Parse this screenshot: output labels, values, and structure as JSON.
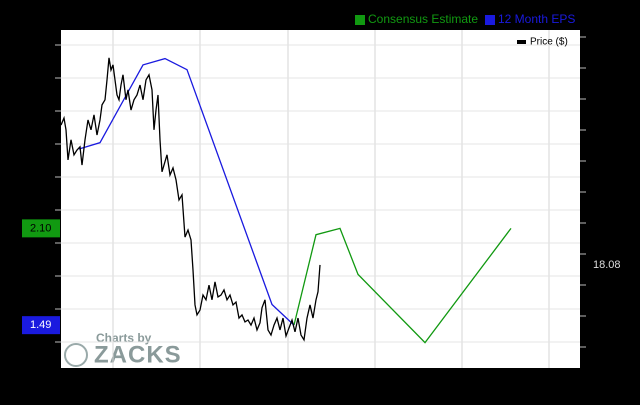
{
  "chart_data": {
    "type": "line",
    "xlim": [
      0,
      519
    ],
    "ylim": [
      1.22,
      3.35
    ],
    "y2lim": [
      14.86,
      25.42
    ],
    "watermark": [
      "Charts by",
      "ZACKS"
    ],
    "series": [
      {
        "name": "Consensus Estimate",
        "color": "#119911",
        "x": [
          233,
          255,
          279,
          297,
          364,
          450
        ],
        "values": [
          1.49,
          2.06,
          2.1,
          1.81,
          1.38,
          2.1
        ],
        "tag": {
          "value": 2.1,
          "label": "2.10"
        }
      },
      {
        "name": "12 Month EPS",
        "color": "#1a1adf",
        "x": [
          18,
          39,
          82,
          104,
          126,
          211,
          233
        ],
        "values": [
          2.6,
          2.64,
          3.13,
          3.17,
          3.1,
          1.62,
          1.49
        ],
        "tag": {
          "value": 1.49,
          "label": "1.49"
        }
      },
      {
        "name": "Price ($)",
        "color": "#000000",
        "axis": "y2",
        "x": [
          0,
          3,
          5,
          7,
          10,
          13,
          16,
          19,
          21,
          24,
          27,
          30,
          33,
          36,
          39,
          41,
          44,
          46,
          48,
          50,
          52,
          54,
          56,
          58,
          60,
          62,
          65,
          67,
          70,
          73,
          76,
          79,
          82,
          85,
          88,
          91,
          93,
          95,
          97,
          99,
          101,
          103,
          106,
          109,
          112,
          115,
          118,
          121,
          124,
          127,
          130,
          132,
          134,
          136,
          139,
          142,
          145,
          148,
          151,
          154,
          157,
          160,
          163,
          166,
          169,
          172,
          175,
          178,
          181,
          184,
          187,
          190,
          193,
          196,
          199,
          201,
          204,
          207,
          210,
          213,
          216,
          219,
          222,
          225,
          228,
          231,
          234,
          237,
          240,
          243,
          246,
          249,
          252,
          255,
          257,
          259
        ],
        "values": [
          22.45,
          22.67,
          22.3,
          21.36,
          21.99,
          21.52,
          21.67,
          21.77,
          21.2,
          21.99,
          22.61,
          22.3,
          22.77,
          22.14,
          22.61,
          23.08,
          23.24,
          23.86,
          24.55,
          24.17,
          24.33,
          23.86,
          23.39,
          23.24,
          23.7,
          24.02,
          23.24,
          23.55,
          22.92,
          23.24,
          23.39,
          23.7,
          23.24,
          23.86,
          24.02,
          23.55,
          22.3,
          22.92,
          23.39,
          21.99,
          20.99,
          21.2,
          21.52,
          20.89,
          21.11,
          20.74,
          20.11,
          20.27,
          18.95,
          19.17,
          18.86,
          17.92,
          16.83,
          16.52,
          16.67,
          17.14,
          16.99,
          17.45,
          16.99,
          17.55,
          17.08,
          17.14,
          17.3,
          16.99,
          17.14,
          16.83,
          16.92,
          16.42,
          16.52,
          16.3,
          16.36,
          16.2,
          16.42,
          16.05,
          16.27,
          16.74,
          16.99,
          16.05,
          15.89,
          16.2,
          16.42,
          16.05,
          16.42,
          15.86,
          16.11,
          16.36,
          15.99,
          16.42,
          15.89,
          15.74,
          16.42,
          16.83,
          16.42,
          16.99,
          17.24,
          18.08
        ],
        "tag": {
          "value": 18.08,
          "label": "18.08"
        }
      }
    ]
  }
}
